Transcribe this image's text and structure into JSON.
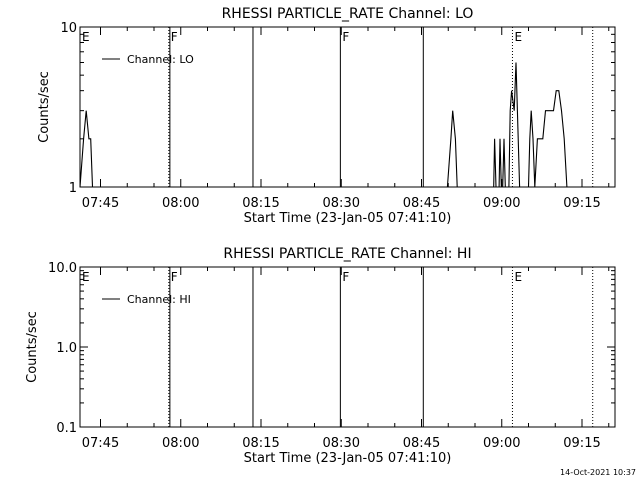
{
  "footer": {
    "timestamp": "14-Oct-2021 10:37"
  },
  "chart_data": [
    {
      "type": "line",
      "title": "RHESSI PARTICLE_RATE Channel: LO",
      "xlabel": "Start Time (23-Jan-05 07:41:10)",
      "ylabel": "Counts/sec",
      "yscale": "log",
      "ylim": [
        1,
        10
      ],
      "yticks": [
        1,
        10
      ],
      "ytick_labels": [
        "1",
        "10"
      ],
      "xlim": [
        "07:41:10",
        "09:21:10"
      ],
      "xticks": [
        "07:45",
        "08:00",
        "08:15",
        "08:30",
        "08:45",
        "09:00",
        "09:15"
      ],
      "legend": {
        "position": "top-left",
        "entries": [
          "Channel: LO"
        ]
      },
      "series": [
        {
          "name": "Channel: LO",
          "x": [
            "07:41:10",
            "07:41:50",
            "07:42:20",
            "07:42:50",
            "07:43:10",
            "07:43:30",
            "07:43:50",
            "08:49:50",
            "08:50:30",
            "08:50:50",
            "08:51:20",
            "08:51:40",
            "08:58:30",
            "08:58:40",
            "08:58:55",
            "08:59:30",
            "08:59:40",
            "08:59:55",
            "09:00:10",
            "09:00:25",
            "09:00:40",
            "09:01:20",
            "09:01:35",
            "09:01:50",
            "09:02:20",
            "09:02:40",
            "09:02:55",
            "09:03:20",
            "09:03:40",
            "09:05:00",
            "09:05:15",
            "09:05:30",
            "09:05:50",
            "09:06:10",
            "09:06:40",
            "09:07:00",
            "09:07:40",
            "09:08:10",
            "09:09:00",
            "09:09:40",
            "09:10:10",
            "09:10:40",
            "09:11:10",
            "09:11:40",
            "09:12:10",
            "09:12:40",
            "09:13:10"
          ],
          "y": [
            1,
            2,
            3,
            2,
            2,
            1,
            1,
            1,
            2,
            3,
            2,
            1,
            1,
            2,
            1,
            1,
            2,
            1,
            1,
            2,
            1,
            1,
            3,
            4,
            3,
            6,
            3,
            1,
            1,
            1,
            2,
            3,
            2,
            1,
            2,
            2,
            2,
            3,
            3,
            3,
            4,
            4,
            3,
            2,
            1,
            1,
            1
          ]
        }
      ],
      "flags": [
        {
          "time": "07:41:10",
          "letter": "E",
          "style": "dotted"
        },
        {
          "time": "07:57:46",
          "letter": "F",
          "style": "dotted"
        },
        {
          "time": "07:57:58",
          "letter": "",
          "style": "solid"
        },
        {
          "time": "08:13:30",
          "letter": "",
          "style": "solid"
        },
        {
          "time": "08:29:50",
          "letter": "F",
          "style": "solid"
        },
        {
          "time": "08:45:20",
          "letter": "",
          "style": "solid"
        },
        {
          "time": "09:02:00",
          "letter": "E",
          "style": "dotted"
        },
        {
          "time": "09:17:00",
          "letter": "",
          "style": "dotted"
        }
      ]
    },
    {
      "type": "line",
      "title": "RHESSI PARTICLE_RATE Channel: HI",
      "xlabel": "Start Time (23-Jan-05 07:41:10)",
      "ylabel": "Counts/sec",
      "yscale": "log",
      "ylim": [
        0.1,
        10
      ],
      "yticks": [
        0.1,
        1,
        10
      ],
      "ytick_labels": [
        "0.1",
        "1.0",
        "10.0"
      ],
      "xlim": [
        "07:41:10",
        "09:21:10"
      ],
      "xticks": [
        "07:45",
        "08:00",
        "08:15",
        "08:30",
        "08:45",
        "09:00",
        "09:15"
      ],
      "legend": {
        "position": "top-left",
        "entries": [
          "Channel: HI"
        ]
      },
      "series": [
        {
          "name": "Channel: HI",
          "x": [],
          "y": []
        }
      ],
      "flags": [
        {
          "time": "07:41:10",
          "letter": "E",
          "style": "dotted"
        },
        {
          "time": "07:57:46",
          "letter": "F",
          "style": "dotted"
        },
        {
          "time": "07:57:58",
          "letter": "",
          "style": "solid"
        },
        {
          "time": "08:13:30",
          "letter": "",
          "style": "solid"
        },
        {
          "time": "08:29:50",
          "letter": "F",
          "style": "solid"
        },
        {
          "time": "08:45:20",
          "letter": "",
          "style": "solid"
        },
        {
          "time": "09:02:00",
          "letter": "E",
          "style": "dotted"
        },
        {
          "time": "09:17:00",
          "letter": "",
          "style": "dotted"
        }
      ]
    }
  ]
}
